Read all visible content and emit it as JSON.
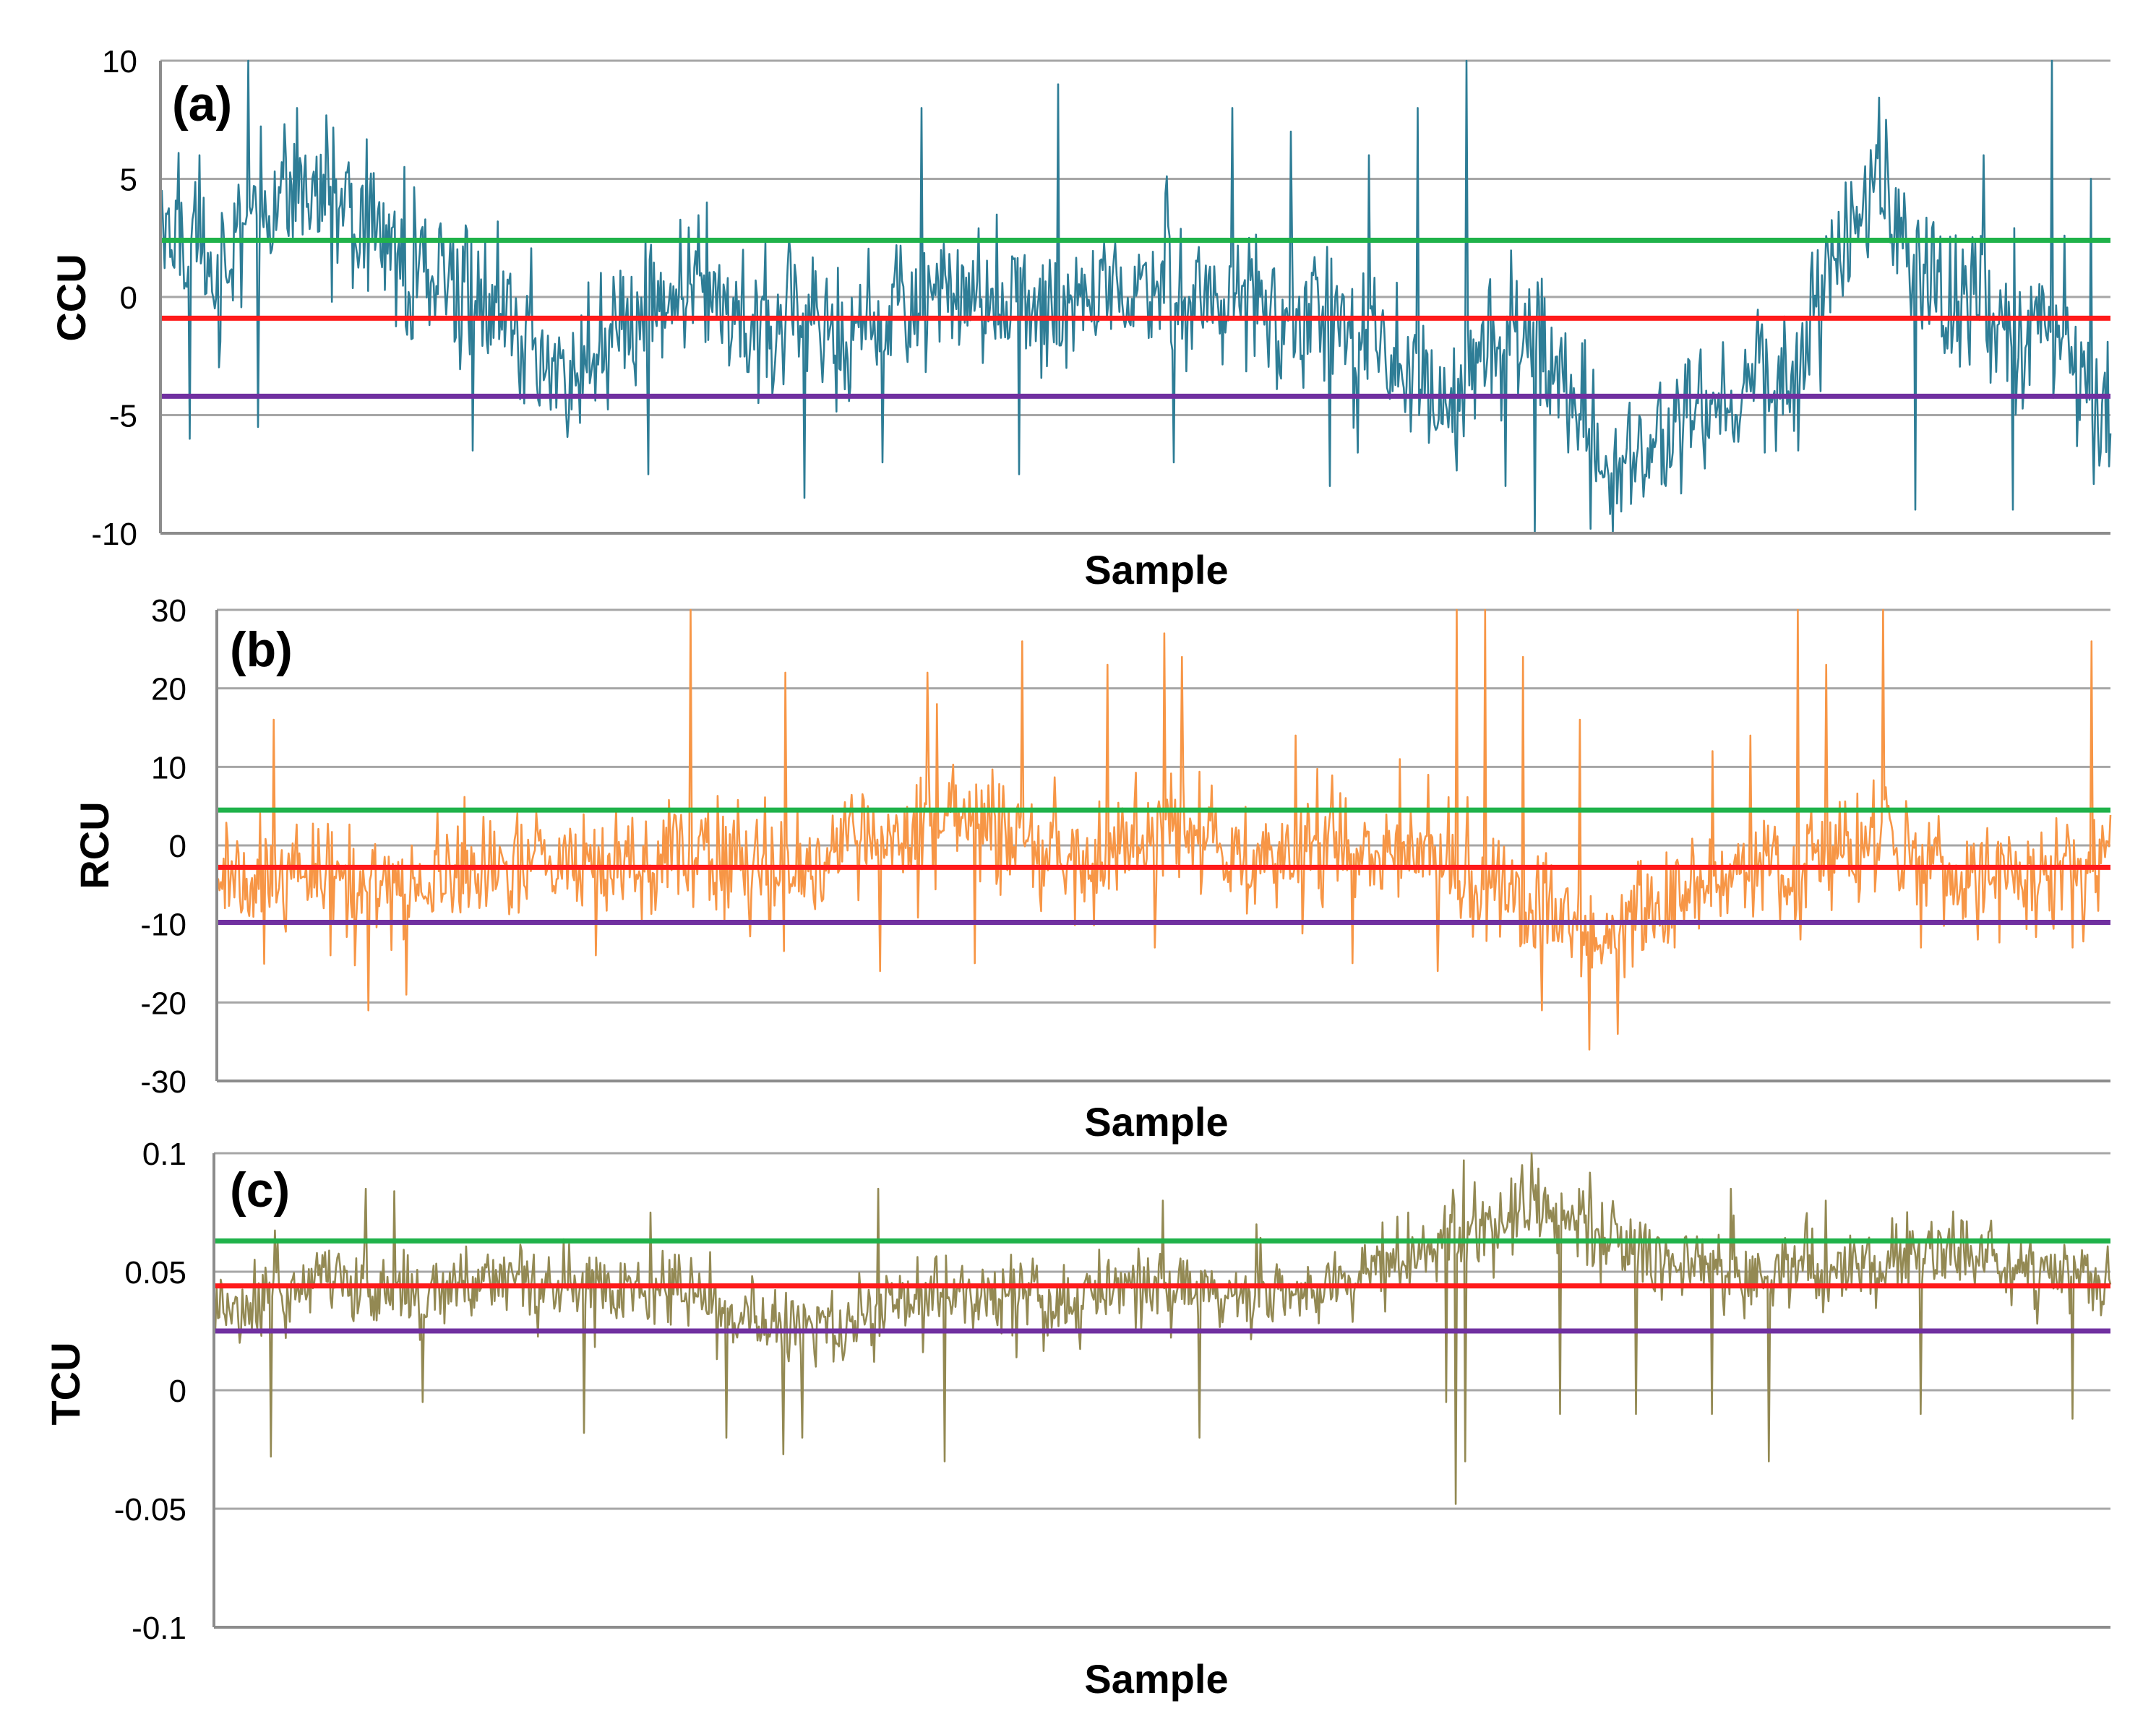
{
  "chart_data": [
    {
      "panel": "a",
      "type": "line",
      "label": "(a)",
      "ylabel": "CCU",
      "xlabel": "Sample",
      "ylim": [
        -10,
        10
      ],
      "yticks": [
        10,
        5,
        0,
        -5,
        -10
      ],
      "ytick_labels": [
        "10",
        "5",
        "0",
        "-5",
        "-10"
      ],
      "grid": true,
      "series_color": "#2e7d96",
      "reference_lines": [
        {
          "name": "upper",
          "value": 2.4,
          "color": "#1fb24a"
        },
        {
          "name": "mean",
          "value": -0.9,
          "color": "#ff1a1a"
        },
        {
          "name": "lower",
          "value": -4.2,
          "color": "#7030a0"
        }
      ],
      "series": [
        {
          "name": "CCU",
          "n": 1400,
          "profile": [
            [
              0,
              3.5
            ],
            [
              0.03,
              1
            ],
            [
              0.05,
              4
            ],
            [
              0.08,
              4.5
            ],
            [
              0.12,
              2
            ],
            [
              0.15,
              0.5
            ],
            [
              0.18,
              -1.5
            ],
            [
              0.21,
              -3
            ],
            [
              0.25,
              0
            ],
            [
              0.3,
              -1
            ],
            [
              0.35,
              -1.5
            ],
            [
              0.4,
              0.5
            ],
            [
              0.45,
              -0.5
            ],
            [
              0.5,
              0.5
            ],
            [
              0.55,
              -0.5
            ],
            [
              0.6,
              -1
            ],
            [
              0.63,
              -2.5
            ],
            [
              0.66,
              -4.5
            ],
            [
              0.7,
              -1
            ],
            [
              0.72,
              -4
            ],
            [
              0.75,
              -7.5
            ],
            [
              0.78,
              -5
            ],
            [
              0.82,
              -3.5
            ],
            [
              0.85,
              -1.5
            ],
            [
              0.88,
              5.5
            ],
            [
              0.91,
              0
            ],
            [
              0.94,
              -1
            ],
            [
              0.97,
              -0.5
            ],
            [
              0.99,
              -5
            ],
            [
              1,
              -5
            ]
          ],
          "noise": 2.0,
          "spikes_up": [
            [
              0.02,
              6
            ],
            [
              0.045,
              10
            ],
            [
              0.07,
              8
            ],
            [
              0.125,
              5.5
            ],
            [
              0.28,
              4
            ],
            [
              0.39,
              8
            ],
            [
              0.46,
              9
            ],
            [
              0.55,
              8
            ],
            [
              0.58,
              7
            ],
            [
              0.62,
              6
            ],
            [
              0.645,
              8
            ],
            [
              0.67,
              10
            ],
            [
              0.84,
              8
            ],
            [
              0.885,
              7.5
            ],
            [
              0.935,
              6
            ],
            [
              0.97,
              10
            ],
            [
              0.99,
              5
            ]
          ],
          "spikes_down": [
            [
              0.015,
              -6
            ],
            [
              0.05,
              -5.5
            ],
            [
              0.16,
              -6.5
            ],
            [
              0.25,
              -7.5
            ],
            [
              0.33,
              -8.5
            ],
            [
              0.37,
              -7
            ],
            [
              0.44,
              -7.5
            ],
            [
              0.52,
              -7
            ],
            [
              0.6,
              -8
            ],
            [
              0.69,
              -8
            ],
            [
              0.705,
              -10
            ],
            [
              0.745,
              -10
            ],
            [
              0.765,
              -7
            ],
            [
              0.84,
              -6.5
            ],
            [
              0.9,
              -9
            ],
            [
              0.95,
              -9
            ]
          ]
        }
      ]
    },
    {
      "panel": "b",
      "type": "line",
      "label": "(b)",
      "ylabel": "RCU",
      "xlabel": "Sample",
      "ylim": [
        -30,
        30
      ],
      "yticks": [
        30,
        20,
        10,
        0,
        -10,
        -20,
        -30
      ],
      "ytick_labels": [
        "30",
        "20",
        "10",
        "0",
        "-10",
        "-20",
        "-30"
      ],
      "grid": true,
      "series_color": "#f79646",
      "reference_lines": [
        {
          "name": "upper",
          "value": 4.5,
          "color": "#1fb24a"
        },
        {
          "name": "mean",
          "value": -2.8,
          "color": "#ff1a1a"
        },
        {
          "name": "lower",
          "value": -9.8,
          "color": "#7030a0"
        }
      ],
      "series": [
        {
          "name": "RCU",
          "n": 1400,
          "profile": [
            [
              0,
              -5
            ],
            [
              0.05,
              -3
            ],
            [
              0.1,
              -6
            ],
            [
              0.15,
              -2
            ],
            [
              0.2,
              -3
            ],
            [
              0.25,
              -1
            ],
            [
              0.3,
              -3
            ],
            [
              0.35,
              0
            ],
            [
              0.4,
              3
            ],
            [
              0.45,
              -3
            ],
            [
              0.5,
              2
            ],
            [
              0.55,
              -2
            ],
            [
              0.6,
              0
            ],
            [
              0.65,
              -3
            ],
            [
              0.7,
              -8
            ],
            [
              0.73,
              -12
            ],
            [
              0.78,
              -5
            ],
            [
              0.82,
              -3
            ],
            [
              0.85,
              -1
            ],
            [
              0.88,
              0
            ],
            [
              0.92,
              -4
            ],
            [
              0.95,
              -5
            ],
            [
              0.99,
              -2
            ],
            [
              1,
              -1
            ]
          ],
          "noise": 4.5,
          "spikes_up": [
            [
              0.03,
              16
            ],
            [
              0.1,
              14
            ],
            [
              0.2,
              20
            ],
            [
              0.25,
              30
            ],
            [
              0.3,
              22
            ],
            [
              0.375,
              22
            ],
            [
              0.425,
              26
            ],
            [
              0.4,
              19
            ],
            [
              0.38,
              18
            ],
            [
              0.47,
              23
            ],
            [
              0.495,
              30
            ],
            [
              0.5,
              27
            ],
            [
              0.51,
              24
            ],
            [
              0.57,
              14
            ],
            [
              0.6,
              12
            ],
            [
              0.625,
              11
            ],
            [
              0.69,
              24
            ],
            [
              0.64,
              9
            ],
            [
              0.655,
              30
            ],
            [
              0.67,
              30
            ],
            [
              0.72,
              16
            ],
            [
              0.74,
              18
            ],
            [
              0.79,
              12
            ],
            [
              0.81,
              14
            ],
            [
              0.835,
              30
            ],
            [
              0.85,
              23
            ],
            [
              0.88,
              30
            ],
            [
              0.93,
              11
            ],
            [
              0.98,
              24
            ],
            [
              0.99,
              26
            ]
          ],
          "spikes_down": [
            [
              0.06,
              -14
            ],
            [
              0.08,
              -21
            ],
            [
              0.1,
              -19
            ],
            [
              0.2,
              -14
            ],
            [
              0.35,
              -16
            ],
            [
              0.4,
              -15
            ],
            [
              0.495,
              -13
            ],
            [
              0.6,
              -15
            ],
            [
              0.645,
              -16
            ],
            [
              0.7,
              -21
            ],
            [
              0.725,
              -26
            ],
            [
              0.74,
              -24
            ],
            [
              0.77,
              -13
            ],
            [
              0.9,
              -13
            ],
            [
              0.93,
              -12
            ],
            [
              0.98,
              -13
            ]
          ]
        }
      ]
    },
    {
      "panel": "c",
      "type": "line",
      "label": "(c)",
      "ylabel": "TCU",
      "xlabel": "Sample",
      "ylim": [
        -0.1,
        0.1
      ],
      "yticks": [
        0.1,
        0.05,
        0,
        -0.05,
        -0.1
      ],
      "ytick_labels": [
        "0.1",
        "0.05",
        "0",
        "-0.05",
        "-0.1"
      ],
      "grid": true,
      "series_color": "#938953",
      "reference_lines": [
        {
          "name": "upper",
          "value": 0.063,
          "color": "#1fb24a"
        },
        {
          "name": "mean",
          "value": 0.044,
          "color": "#ff1a1a"
        },
        {
          "name": "lower",
          "value": 0.025,
          "color": "#7030a0"
        }
      ],
      "series": [
        {
          "name": "TCU",
          "n": 1400,
          "profile": [
            [
              0,
              0.035
            ],
            [
              0.05,
              0.045
            ],
            [
              0.1,
              0.04
            ],
            [
              0.15,
              0.045
            ],
            [
              0.2,
              0.045
            ],
            [
              0.25,
              0.04
            ],
            [
              0.28,
              0.03
            ],
            [
              0.33,
              0.025
            ],
            [
              0.38,
              0.04
            ],
            [
              0.42,
              0.04
            ],
            [
              0.45,
              0.035
            ],
            [
              0.5,
              0.045
            ],
            [
              0.55,
              0.04
            ],
            [
              0.6,
              0.045
            ],
            [
              0.62,
              0.055
            ],
            [
              0.66,
              0.07
            ],
            [
              0.7,
              0.075
            ],
            [
              0.72,
              0.07
            ],
            [
              0.76,
              0.055
            ],
            [
              0.8,
              0.05
            ],
            [
              0.85,
              0.05
            ],
            [
              0.88,
              0.055
            ],
            [
              0.92,
              0.06
            ],
            [
              0.96,
              0.05
            ],
            [
              1,
              0.045
            ]
          ],
          "noise": 0.011,
          "spikes_up": [
            [
              0.08,
              0.085
            ],
            [
              0.095,
              0.084
            ],
            [
              0.23,
              0.075
            ],
            [
              0.35,
              0.085
            ],
            [
              0.5,
              0.08
            ],
            [
              0.55,
              0.07
            ],
            [
              0.63,
              0.075
            ],
            [
              0.66,
              0.08
            ],
            [
              0.69,
              0.095
            ],
            [
              0.695,
              0.1
            ],
            [
              0.72,
              0.085
            ],
            [
              0.8,
              0.085
            ],
            [
              0.85,
              0.08
            ],
            [
              0.9,
              0.085
            ]
          ],
          "spikes_down": [
            [
              0.03,
              -0.028
            ],
            [
              0.11,
              -0.005
            ],
            [
              0.195,
              -0.018
            ],
            [
              0.27,
              -0.02
            ],
            [
              0.3,
              -0.027
            ],
            [
              0.31,
              -0.02
            ],
            [
              0.385,
              -0.03
            ],
            [
              0.52,
              -0.02
            ],
            [
              0.65,
              -0.005
            ],
            [
              0.655,
              -0.048
            ],
            [
              0.66,
              -0.03
            ],
            [
              0.71,
              -0.01
            ],
            [
              0.75,
              -0.01
            ],
            [
              0.79,
              -0.01
            ],
            [
              0.82,
              -0.03
            ],
            [
              0.9,
              -0.01
            ],
            [
              0.98,
              -0.012
            ]
          ]
        }
      ]
    }
  ]
}
